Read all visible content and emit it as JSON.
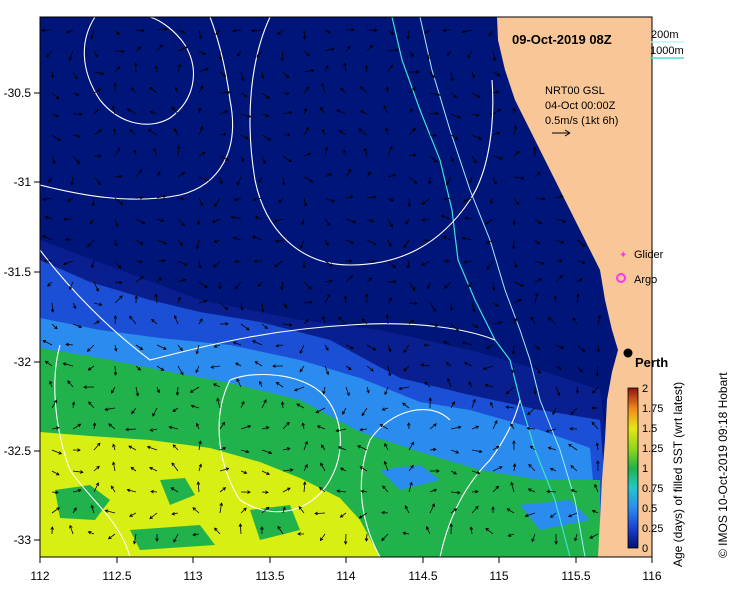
{
  "map": {
    "timestamp": "09-Oct-2019 08Z",
    "isobaths": [
      {
        "label": "200m",
        "color": "#b0f0ff"
      },
      {
        "label": "1000m",
        "color": "#40e0d0"
      }
    ],
    "current_info": {
      "line1": "NRT00 GSL",
      "line2": "04-Oct 00:00Z",
      "line3": "0.5m/s (1kt 6h)"
    },
    "legend": {
      "glider": {
        "label": "Glider",
        "color": "#ff33ff"
      },
      "argo": {
        "label": "Argo",
        "color": "#ff33ff"
      }
    },
    "city": {
      "label": "Perth"
    },
    "x_axis": {
      "ticks": [
        "112",
        "112.5",
        "113",
        "113.5",
        "114",
        "114.5",
        "115",
        "115.5",
        "116"
      ]
    },
    "y_axis": {
      "ticks": [
        "-30.5",
        "-31",
        "-31.5",
        "-32",
        "-32.5",
        "-33"
      ]
    },
    "colorbar": {
      "title": "Age (days) of filled SST (wrt latest)",
      "ticks": [
        "2",
        "1.75",
        "1.5",
        "1.25",
        "1",
        "0.75",
        "0.5",
        "0.25",
        "0"
      ]
    },
    "credit": "© IMOS 10-Oct-2019 09:18 Hobart",
    "colors": {
      "ocean_deep": "#00157a",
      "ocean_navy": "#0a1f8f",
      "band_blue": "#1b4fd6",
      "band_light": "#2b8cf0",
      "band_green": "#21b24b",
      "band_yellow": "#d7ef12",
      "land": "#f9c797"
    }
  }
}
